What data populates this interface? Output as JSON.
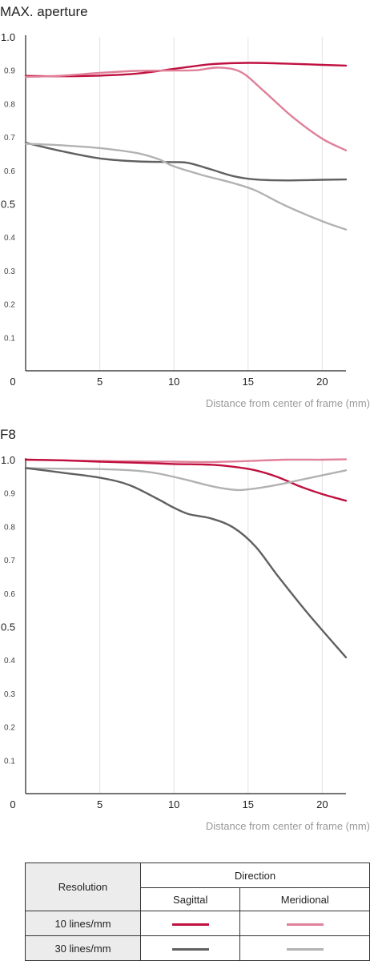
{
  "chart_data": [
    {
      "type": "line",
      "title": "MAX. aperture",
      "xlabel": "Distance from center of frame (mm)",
      "ylabel": "",
      "xlim": [
        0,
        21.6
      ],
      "ylim": [
        0,
        1.0
      ],
      "x_ticks": [
        {
          "value": 0,
          "label": "0"
        },
        {
          "value": 5,
          "label": "5"
        },
        {
          "value": 10,
          "label": "10"
        },
        {
          "value": 15,
          "label": "15"
        },
        {
          "value": 20,
          "label": "20"
        }
      ],
      "y_ticks": [
        {
          "value": 1.0,
          "label": "1.0",
          "major": true
        },
        {
          "value": 0.9,
          "label": "0.9",
          "major": false
        },
        {
          "value": 0.8,
          "label": "0.8",
          "major": false
        },
        {
          "value": 0.7,
          "label": "0.7",
          "major": false
        },
        {
          "value": 0.6,
          "label": "0.6",
          "major": false
        },
        {
          "value": 0.5,
          "label": "0.5",
          "major": true
        },
        {
          "value": 0.4,
          "label": "0.4",
          "major": false
        },
        {
          "value": 0.3,
          "label": "0.3",
          "major": false
        },
        {
          "value": 0.2,
          "label": "0.2",
          "major": false
        },
        {
          "value": 0.1,
          "label": "0.1",
          "major": false
        }
      ],
      "grid": "vertical",
      "series": [
        {
          "key": "s10",
          "color": "#c0103f",
          "x": [
            0,
            2.5,
            5,
            7.5,
            10,
            12.5,
            15,
            17.5,
            20,
            21.6
          ],
          "y": [
            0.883,
            0.882,
            0.884,
            0.89,
            0.904,
            0.918,
            0.922,
            0.92,
            0.916,
            0.914
          ]
        },
        {
          "key": "m10",
          "color": "#e08099",
          "x": [
            0,
            2.5,
            5,
            7.5,
            10,
            11.5,
            13,
            14.5,
            16,
            18,
            20,
            21.6
          ],
          "y": [
            0.88,
            0.884,
            0.892,
            0.898,
            0.899,
            0.9,
            0.908,
            0.895,
            0.84,
            0.76,
            0.695,
            0.66
          ]
        },
        {
          "key": "s30",
          "color": "#606060",
          "x": [
            0,
            2.5,
            5,
            7.5,
            10,
            11,
            12.5,
            14,
            15.5,
            17.5,
            20,
            21.6
          ],
          "y": [
            0.683,
            0.657,
            0.636,
            0.627,
            0.625,
            0.622,
            0.603,
            0.583,
            0.573,
            0.57,
            0.572,
            0.573
          ]
        },
        {
          "key": "m30",
          "color": "#b2b2b2",
          "x": [
            0,
            2.5,
            5,
            7.5,
            9,
            10,
            12,
            14,
            15.5,
            17.5,
            20,
            21.6
          ],
          "y": [
            0.68,
            0.675,
            0.667,
            0.652,
            0.633,
            0.612,
            0.585,
            0.562,
            0.54,
            0.495,
            0.448,
            0.423
          ]
        }
      ]
    },
    {
      "type": "line",
      "title": "F8",
      "xlabel": "Distance from center of frame (mm)",
      "ylabel": "",
      "xlim": [
        0,
        21.6
      ],
      "ylim": [
        0,
        1.0
      ],
      "x_ticks": [
        {
          "value": 0,
          "label": "0"
        },
        {
          "value": 5,
          "label": "5"
        },
        {
          "value": 10,
          "label": "10"
        },
        {
          "value": 15,
          "label": "15"
        },
        {
          "value": 20,
          "label": "20"
        }
      ],
      "y_ticks": [
        {
          "value": 1.0,
          "label": "1.0",
          "major": true
        },
        {
          "value": 0.9,
          "label": "0.9",
          "major": false
        },
        {
          "value": 0.8,
          "label": "0.8",
          "major": false
        },
        {
          "value": 0.7,
          "label": "0.7",
          "major": false
        },
        {
          "value": 0.6,
          "label": "0.6",
          "major": false
        },
        {
          "value": 0.5,
          "label": "0.5",
          "major": true
        },
        {
          "value": 0.4,
          "label": "0.4",
          "major": false
        },
        {
          "value": 0.3,
          "label": "0.3",
          "major": false
        },
        {
          "value": 0.2,
          "label": "0.2",
          "major": false
        },
        {
          "value": 0.1,
          "label": "0.1",
          "major": false
        }
      ],
      "grid": "vertical",
      "series": [
        {
          "key": "m10",
          "color": "#e08099",
          "x": [
            0,
            2.5,
            5,
            7.5,
            10,
            12.5,
            15,
            17.5,
            20,
            21.6
          ],
          "y": [
            1.0,
            0.998,
            0.996,
            0.995,
            0.994,
            0.993,
            0.996,
            1.0,
            1.0,
            1.001
          ]
        },
        {
          "key": "s10",
          "color": "#c0103f",
          "x": [
            0,
            2.5,
            5,
            7.5,
            10,
            12.5,
            14,
            15.5,
            17,
            18.5,
            20,
            21.6
          ],
          "y": [
            1.0,
            0.998,
            0.994,
            0.991,
            0.987,
            0.985,
            0.979,
            0.968,
            0.948,
            0.92,
            0.897,
            0.877
          ]
        },
        {
          "key": "m30",
          "color": "#b2b2b2",
          "x": [
            0,
            2.5,
            5,
            7.5,
            9,
            11,
            12.5,
            14,
            15,
            17,
            19,
            21.6
          ],
          "y": [
            0.975,
            0.973,
            0.972,
            0.967,
            0.958,
            0.938,
            0.921,
            0.91,
            0.911,
            0.925,
            0.944,
            0.968
          ]
        },
        {
          "key": "s30",
          "color": "#606060",
          "x": [
            0,
            2.5,
            5,
            7,
            9,
            10,
            11,
            12.5,
            14,
            15.5,
            17,
            19,
            21.6
          ],
          "y": [
            0.975,
            0.961,
            0.946,
            0.924,
            0.88,
            0.856,
            0.837,
            0.824,
            0.797,
            0.74,
            0.652,
            0.541,
            0.408
          ]
        }
      ]
    }
  ],
  "legend": {
    "resolution_header": "Resolution",
    "direction_header": "Direction",
    "sagittal_label": "Sagittal",
    "meridional_label": "Meridional",
    "rows": [
      {
        "label": "10 lines/mm",
        "sagittal_color": "#c0103f",
        "meridional_color": "#e08099"
      },
      {
        "label": "30 lines/mm",
        "sagittal_color": "#606060",
        "meridional_color": "#b2b2b2"
      }
    ]
  }
}
